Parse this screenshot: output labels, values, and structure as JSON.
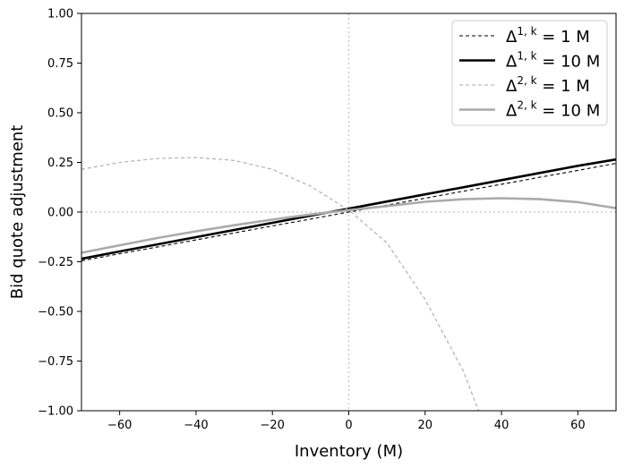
{
  "chart_data": {
    "type": "line",
    "title": "",
    "xlabel": "Inventory (M)",
    "ylabel": "Bid quote adjustment",
    "xlim": [
      -70,
      70
    ],
    "ylim": [
      -1.0,
      1.0
    ],
    "x_ticks": [
      -60,
      -40,
      -20,
      0,
      20,
      40,
      60
    ],
    "x_tick_labels": [
      "−60",
      "−40",
      "−20",
      "0",
      "20",
      "40",
      "60"
    ],
    "y_ticks": [
      -1.0,
      -0.75,
      -0.5,
      -0.25,
      0.0,
      0.25,
      0.5,
      0.75,
      1.0
    ],
    "y_tick_labels": [
      "−1.00",
      "−0.75",
      "−0.50",
      "−0.25",
      "0.00",
      "0.25",
      "0.50",
      "0.75",
      "1.00"
    ],
    "grid": false,
    "reference_lines": {
      "x": 0,
      "y": 0,
      "style": "dotted",
      "color": "#cccccc"
    },
    "legend_position": "top-right",
    "series": [
      {
        "name": "Δ^{1,k} = 1 M",
        "legend": {
          "base": "Δ",
          "sup": "1, k",
          "rest": " = 1 M"
        },
        "color": "#000000",
        "style": "dashed",
        "weight": "thin",
        "x": [
          -70,
          -60,
          -50,
          -40,
          -30,
          -20,
          -10,
          0,
          10,
          20,
          30,
          40,
          50,
          60,
          70
        ],
        "y": [
          -0.245,
          -0.21,
          -0.175,
          -0.14,
          -0.105,
          -0.07,
          -0.035,
          0.0,
          0.035,
          0.07,
          0.105,
          0.14,
          0.175,
          0.21,
          0.245
        ]
      },
      {
        "name": "Δ^{1,k} = 10 M",
        "legend": {
          "base": "Δ",
          "sup": "1, k",
          "rest": " = 10 M"
        },
        "color": "#000000",
        "style": "solid",
        "weight": "thick",
        "x": [
          -70,
          -60,
          -50,
          -40,
          -30,
          -20,
          -10,
          0,
          10,
          20,
          30,
          40,
          50,
          60,
          70
        ],
        "y": [
          -0.235,
          -0.198,
          -0.162,
          -0.126,
          -0.09,
          -0.054,
          -0.018,
          0.017,
          0.053,
          0.089,
          0.125,
          0.161,
          0.197,
          0.233,
          0.265
        ]
      },
      {
        "name": "Δ^{2,k} = 1 M",
        "legend": {
          "base": "Δ",
          "sup": "2, k",
          "rest": " = 1 M"
        },
        "color": "#aaaaaa",
        "style": "dashed",
        "weight": "thin",
        "x": [
          -70,
          -60,
          -50,
          -40,
          -30,
          -20,
          -10,
          0,
          10,
          20,
          30,
          34
        ],
        "y": [
          0.215,
          0.25,
          0.27,
          0.275,
          0.26,
          0.215,
          0.13,
          0.01,
          -0.155,
          -0.44,
          -0.8,
          -1.0
        ]
      },
      {
        "name": "Δ^{2,k} = 10 M",
        "legend": {
          "base": "Δ",
          "sup": "2, k",
          "rest": " = 10 M"
        },
        "color": "#aaaaaa",
        "style": "solid",
        "weight": "thick",
        "x": [
          -70,
          -60,
          -50,
          -40,
          -30,
          -20,
          -10,
          0,
          10,
          20,
          30,
          40,
          50,
          60,
          70
        ],
        "y": [
          -0.205,
          -0.167,
          -0.13,
          -0.097,
          -0.066,
          -0.038,
          -0.012,
          0.01,
          0.03,
          0.052,
          0.065,
          0.07,
          0.065,
          0.05,
          0.02
        ]
      }
    ]
  }
}
